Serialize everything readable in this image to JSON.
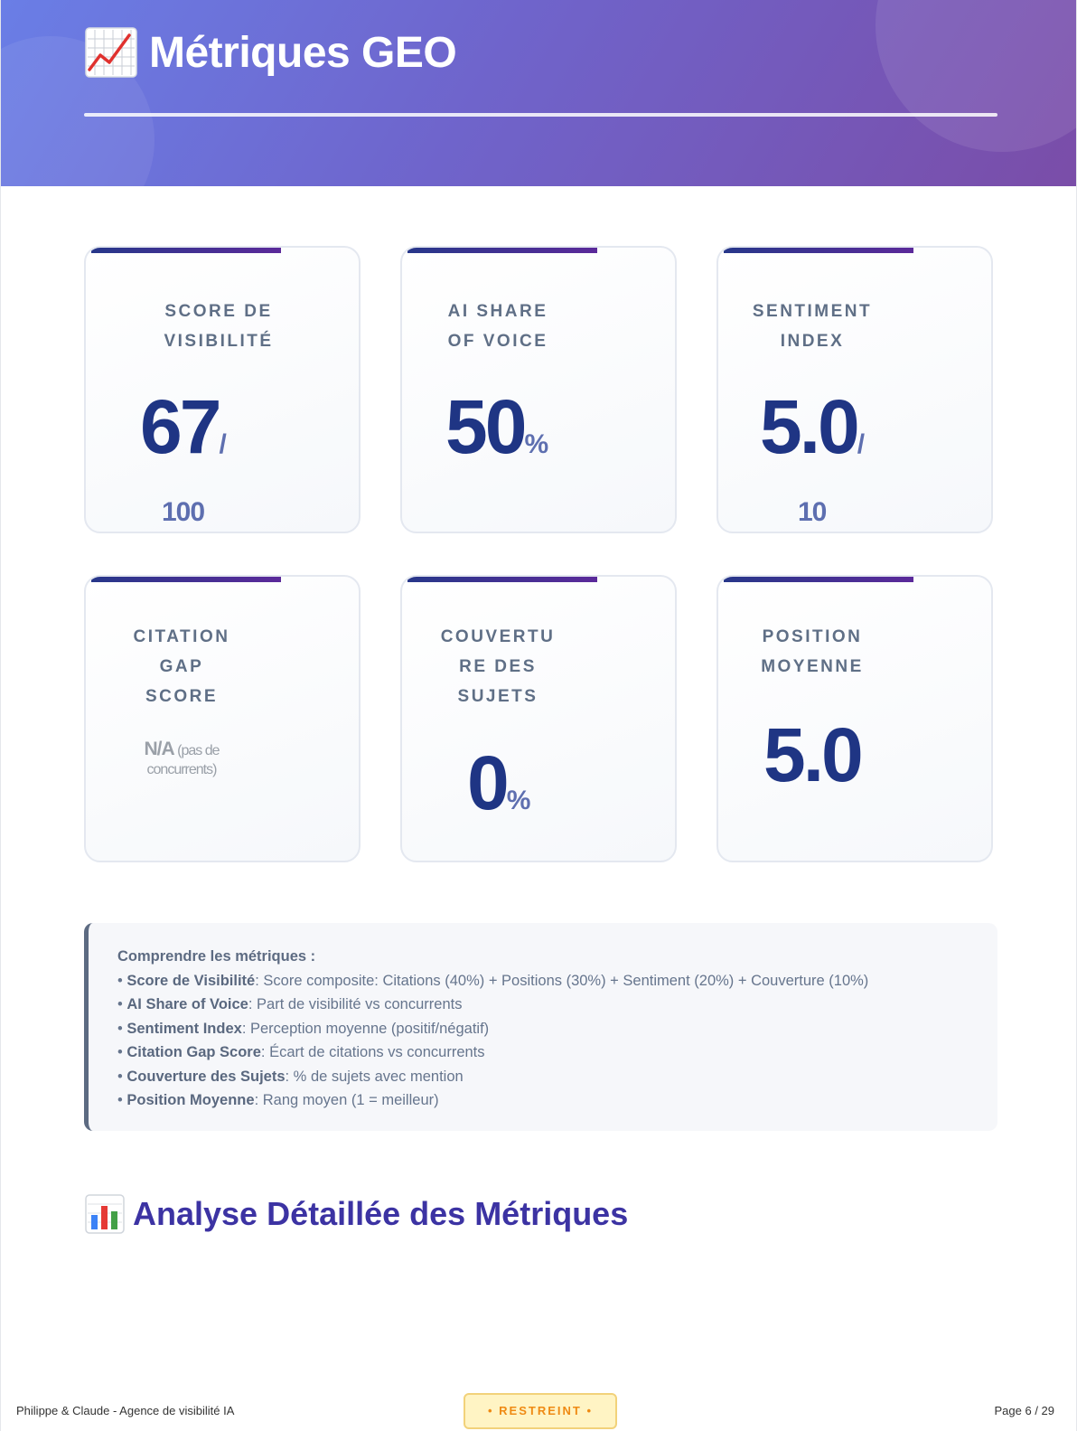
{
  "header": {
    "icon": "chart-increasing-icon",
    "title": "Métriques GEO"
  },
  "metrics": [
    {
      "label": "SCORE DE VISIBILITÉ",
      "label_lines": [
        "SCORE DE",
        "VISIBILITÉ"
      ],
      "value": "67",
      "unit": "/",
      "denominator": "100"
    },
    {
      "label": "AI SHARE OF VOICE",
      "label_lines": [
        "AI SHARE",
        "OF VOICE"
      ],
      "value": "50",
      "unit": "%"
    },
    {
      "label": "SENTIMENT INDEX",
      "label_lines": [
        "SENTIMENT",
        "INDEX"
      ],
      "value": "5.0",
      "unit": "/",
      "denominator": "10"
    },
    {
      "label": "CITATION GAP SCORE",
      "label_lines": [
        "CITATION",
        "GAP",
        "SCORE"
      ],
      "value": "N/A",
      "note_lines": [
        "(pas de",
        "concurrents)"
      ]
    },
    {
      "label": "COUVERTURE DES SUJETS",
      "label_lines": [
        "COUVERTU",
        "RE DES",
        "SUJETS"
      ],
      "value": "0",
      "unit": "%"
    },
    {
      "label": "POSITION MOYENNE",
      "label_lines": [
        "POSITION",
        "MOYENNE"
      ],
      "value": "5.0"
    }
  ],
  "explanation": {
    "title": "Comprendre les métriques :",
    "items": [
      {
        "term": "Score de Visibilité",
        "desc": ": Score composite: Citations (40%) + Positions (30%) + Sentiment (20%) + Couverture (10%)"
      },
      {
        "term": "AI Share of Voice",
        "desc": ": Part de visibilité vs concurrents"
      },
      {
        "term": "Sentiment Index",
        "desc": ": Perception moyenne (positif/négatif)"
      },
      {
        "term": "Citation Gap Score",
        "desc": ": Écart de citations vs concurrents"
      },
      {
        "term": "Couverture des Sujets",
        "desc": ": % de sujets avec mention"
      },
      {
        "term": "Position Moyenne",
        "desc": ": Rang moyen (1 = meilleur)"
      }
    ]
  },
  "section": {
    "icon": "bar-chart-icon",
    "title": "Analyse Détaillée des Métriques"
  },
  "footer": {
    "left": "Philippe & Claude - Agence de visibilité IA",
    "badge": "• RESTREINT •",
    "page": "Page 6 / 29"
  }
}
